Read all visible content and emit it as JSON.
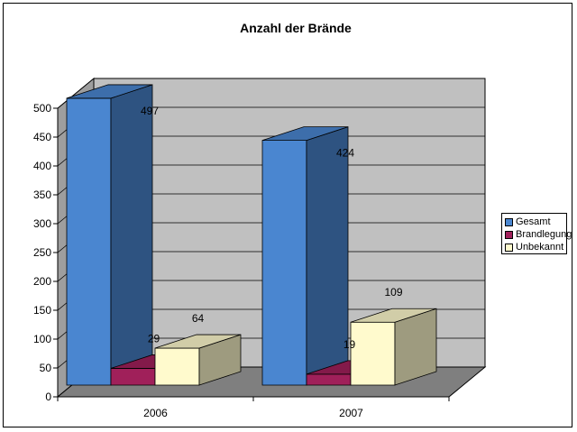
{
  "chart_data": {
    "type": "bar",
    "title": "Anzahl der Brände",
    "categories": [
      "2006",
      "2007"
    ],
    "series": [
      {
        "name": "Gesamt",
        "values": [
          497,
          424
        ],
        "color": "#4A86D0"
      },
      {
        "name": "Brandlegung",
        "values": [
          29,
          19
        ],
        "color": "#A0205A"
      },
      {
        "name": "Unbekannt",
        "values": [
          64,
          109
        ],
        "color": "#FFFACD"
      }
    ],
    "ylim": [
      0,
      500
    ],
    "yticks": [
      "0",
      "50",
      "100",
      "150",
      "200",
      "250",
      "300",
      "350",
      "400",
      "450",
      "500"
    ],
    "grid": true,
    "legend": "right",
    "xlabel": "",
    "ylabel": "",
    "style": "3d-clustered-column"
  }
}
